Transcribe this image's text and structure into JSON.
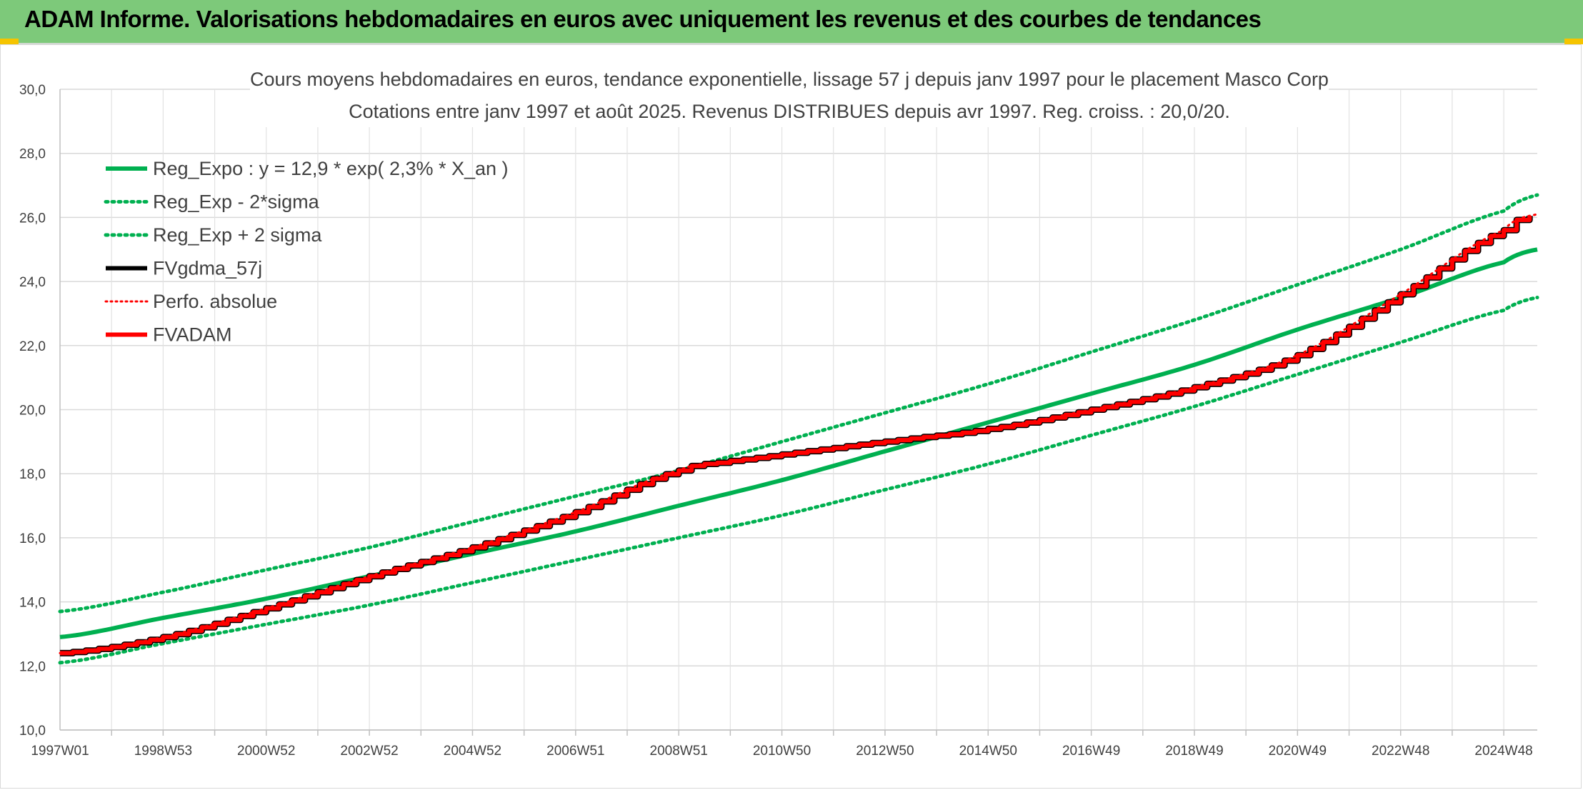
{
  "banner": {
    "title": "ADAM Informe. Valorisations hebdomadaires en euros avec uniquement les revenus et des courbes de tendances"
  },
  "colors": {
    "banner_bg": "#7dc97a",
    "trend_green": "#00b050",
    "red": "#ff0000",
    "black": "#000000",
    "grid": "#d9d9d9",
    "accent_yellow": "#f5c400"
  },
  "chart_data": {
    "type": "line",
    "title_line1": "Cours moyens hebdomadaires en euros, tendance exponentielle, lissage 57 j depuis janv 1997 pour le placement Masco Corp",
    "title_line2": "Cotations entre janv 1997 et août 2025. Revenus DISTRIBUES depuis avr 1997. Reg. croiss. : 20,0/20.",
    "xlabel": "",
    "ylabel": "",
    "ylim": [
      10,
      30
    ],
    "yticks": [
      "10,0",
      "12,0",
      "14,0",
      "16,0",
      "18,0",
      "20,0",
      "22,0",
      "24,0",
      "26,0",
      "28,0",
      "30,0"
    ],
    "xlim": [
      1997.0,
      2025.65
    ],
    "xtick_labels": [
      "1997W01",
      "1998W53",
      "2000W52",
      "2002W52",
      "2004W52",
      "2006W51",
      "2008W51",
      "2010W50",
      "2012W50",
      "2014W50",
      "2016W49",
      "2018W49",
      "2020W49",
      "2022W48",
      "2024W48"
    ],
    "xtick_years": [
      1997.0,
      1999.0,
      2001.0,
      2003.0,
      2005.0,
      2007.0,
      2009.0,
      2011.0,
      2013.0,
      2015.0,
      2017.0,
      2019.0,
      2021.0,
      2023.0,
      2025.0
    ],
    "grid": true,
    "legend_position": "top-left",
    "series": [
      {
        "name": "Reg_Expo : y = 12,9 * exp( 2,3% *  X_an )",
        "style": "solid-thick",
        "color": "#00b050",
        "x": [
          1997.0,
          1999.0,
          2001.0,
          2003.0,
          2005.0,
          2007.0,
          2009.0,
          2011.0,
          2013.0,
          2015.0,
          2017.0,
          2019.0,
          2021.0,
          2023.0,
          2025.0,
          2025.65
        ],
        "y": [
          12.9,
          13.5,
          14.1,
          14.8,
          15.5,
          16.2,
          17.0,
          17.8,
          18.7,
          19.6,
          20.5,
          21.4,
          22.5,
          23.5,
          24.6,
          25.0
        ]
      },
      {
        "name": "Reg_Exp - 2*sigma",
        "style": "dotted",
        "color": "#00b050",
        "x": [
          1997.0,
          1999.0,
          2001.0,
          2003.0,
          2005.0,
          2007.0,
          2009.0,
          2011.0,
          2013.0,
          2015.0,
          2017.0,
          2019.0,
          2021.0,
          2023.0,
          2025.0,
          2025.65
        ],
        "y": [
          12.1,
          12.7,
          13.3,
          13.9,
          14.6,
          15.3,
          16.0,
          16.7,
          17.5,
          18.3,
          19.2,
          20.1,
          21.1,
          22.1,
          23.1,
          23.5
        ]
      },
      {
        "name": "Reg_Exp + 2 sigma",
        "style": "dotted",
        "color": "#00b050",
        "x": [
          1997.0,
          1999.0,
          2001.0,
          2003.0,
          2005.0,
          2007.0,
          2009.0,
          2011.0,
          2013.0,
          2015.0,
          2017.0,
          2019.0,
          2021.0,
          2023.0,
          2025.0,
          2025.65
        ],
        "y": [
          13.7,
          14.3,
          15.0,
          15.7,
          16.5,
          17.3,
          18.1,
          19.0,
          19.9,
          20.8,
          21.8,
          22.8,
          23.9,
          25.0,
          26.2,
          26.7
        ]
      },
      {
        "name": "FVgdma_57j",
        "style": "solid-thick",
        "color": "#000000",
        "x": [
          1997.0,
          1999.0,
          2001.0,
          2003.0,
          2005.0,
          2007.0,
          2009.0,
          2010.0,
          2012.0,
          2013.5,
          2015.0,
          2017.0,
          2019.0,
          2021.0,
          2023.0,
          2025.0,
          2025.65
        ],
        "y": [
          12.4,
          12.9,
          13.8,
          14.8,
          15.7,
          16.8,
          18.1,
          18.4,
          18.8,
          19.1,
          19.4,
          20.0,
          20.7,
          21.7,
          23.6,
          25.6,
          26.1
        ]
      },
      {
        "name": "Perfo. absolue",
        "style": "dotted",
        "color": "#ff0000",
        "x": [
          1997.0,
          1999.0,
          2001.0,
          2003.0,
          2005.0,
          2007.0,
          2009.0,
          2010.0,
          2012.0,
          2013.5,
          2015.0,
          2017.0,
          2019.0,
          2021.0,
          2023.0,
          2025.0,
          2025.65
        ],
        "y": [
          12.4,
          12.9,
          13.8,
          14.8,
          15.7,
          16.8,
          18.1,
          18.4,
          18.8,
          19.1,
          19.4,
          20.0,
          20.7,
          21.7,
          23.6,
          25.6,
          26.1
        ]
      },
      {
        "name": "FVADAM",
        "style": "solid-thick",
        "color": "#ff0000",
        "x": [
          1997.0,
          1999.0,
          2001.0,
          2003.0,
          2005.0,
          2007.0,
          2009.0,
          2010.0,
          2012.0,
          2013.5,
          2015.0,
          2017.0,
          2019.0,
          2021.0,
          2023.0,
          2025.0,
          2025.65
        ],
        "y": [
          12.4,
          12.9,
          13.8,
          14.8,
          15.7,
          16.8,
          18.1,
          18.4,
          18.8,
          19.1,
          19.4,
          20.0,
          20.7,
          21.7,
          23.6,
          25.6,
          26.1
        ]
      }
    ]
  }
}
